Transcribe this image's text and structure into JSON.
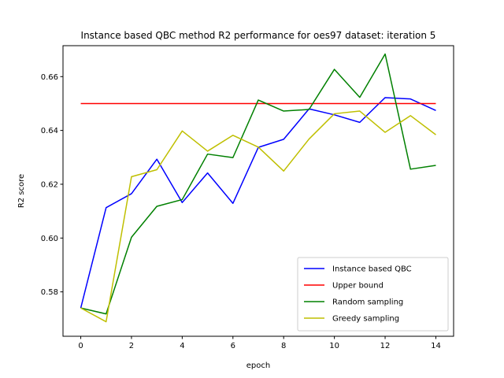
{
  "chart_data": {
    "type": "line",
    "title": "Instance based QBC method R2 performance for oes97 dataset: iteration 5",
    "xlabel": "epoch",
    "ylabel": "R2 score",
    "xlim": [
      -0.7,
      14.7
    ],
    "ylim": [
      0.5635,
      0.6715
    ],
    "x_ticks": [
      0,
      2,
      4,
      6,
      8,
      10,
      12,
      14
    ],
    "y_ticks": [
      0.58,
      0.6,
      0.62,
      0.64,
      0.66
    ],
    "y_tick_labels": [
      "0.58",
      "0.60",
      "0.62",
      "0.64",
      "0.66"
    ],
    "grid": false,
    "legend_position": "lower-right",
    "x": [
      0,
      1,
      2,
      3,
      4,
      5,
      6,
      7,
      8,
      9,
      10,
      11,
      12,
      13,
      14
    ],
    "series": [
      {
        "name": "Instance based QBC",
        "color": "#0000ff",
        "values": [
          0.574,
          0.6113,
          0.6165,
          0.6293,
          0.6132,
          0.6242,
          0.6129,
          0.6337,
          0.6367,
          0.648,
          0.6458,
          0.643,
          0.6522,
          0.6517,
          0.6474
        ]
      },
      {
        "name": "Upper bound",
        "color": "#ff0000",
        "values": [
          0.65,
          0.65,
          0.65,
          0.65,
          0.65,
          0.65,
          0.65,
          0.65,
          0.65,
          0.65,
          0.65,
          0.65,
          0.65,
          0.65,
          0.65
        ]
      },
      {
        "name": "Random sampling",
        "color": "#008000",
        "values": [
          0.574,
          0.5718,
          0.6003,
          0.6118,
          0.6143,
          0.6312,
          0.6299,
          0.6513,
          0.6472,
          0.6478,
          0.6627,
          0.6523,
          0.6684,
          0.6256,
          0.627
        ]
      },
      {
        "name": "Greedy sampling",
        "color": "#bfbf00",
        "values": [
          0.574,
          0.5689,
          0.6228,
          0.6254,
          0.6398,
          0.6323,
          0.6382,
          0.6338,
          0.6249,
          0.6368,
          0.6462,
          0.6472,
          0.6393,
          0.6455,
          0.6384
        ]
      }
    ]
  }
}
